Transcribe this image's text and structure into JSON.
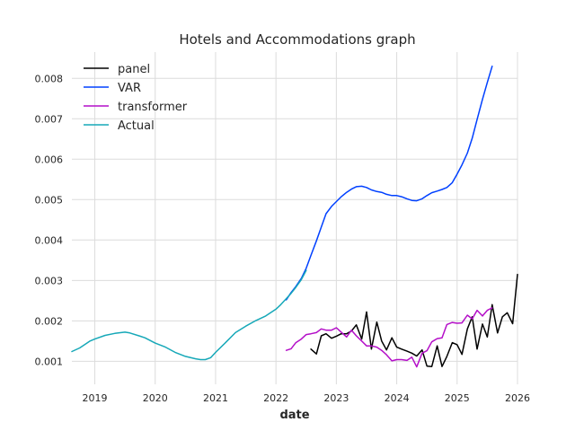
{
  "chart_data": {
    "type": "line",
    "title": "Hotels and Accommodations graph",
    "xlabel": "date",
    "ylabel": "",
    "xlim": [
      2018.62,
      2026.0
    ],
    "ylim": [
      0.00043,
      0.00865
    ],
    "grid": true,
    "legend_position": "top-left",
    "x_ticks": [
      {
        "value": 2019,
        "label": "2019"
      },
      {
        "value": 2020,
        "label": "2020"
      },
      {
        "value": 2021,
        "label": "2021"
      },
      {
        "value": 2022,
        "label": "2022"
      },
      {
        "value": 2023,
        "label": "2023"
      },
      {
        "value": 2024,
        "label": "2024"
      },
      {
        "value": 2025,
        "label": "2025"
      },
      {
        "value": 2026,
        "label": "2026"
      }
    ],
    "y_ticks": [
      {
        "value": 0.001,
        "label": "0.001"
      },
      {
        "value": 0.002,
        "label": "0.002"
      },
      {
        "value": 0.003,
        "label": "0.003"
      },
      {
        "value": 0.004,
        "label": "0.004"
      },
      {
        "value": 0.005,
        "label": "0.005"
      },
      {
        "value": 0.006,
        "label": "0.006"
      },
      {
        "value": 0.007,
        "label": "0.007"
      },
      {
        "value": 0.008,
        "label": "0.008"
      }
    ],
    "series": [
      {
        "name": "panel",
        "color": "#000000",
        "points": [
          [
            2022.58,
            0.0013
          ],
          [
            2022.67,
            0.00118
          ],
          [
            2022.75,
            0.00163
          ],
          [
            2022.83,
            0.00168
          ],
          [
            2022.92,
            0.00157
          ],
          [
            2023.0,
            0.00162
          ],
          [
            2023.08,
            0.00168
          ],
          [
            2023.17,
            0.00168
          ],
          [
            2023.25,
            0.00175
          ],
          [
            2023.33,
            0.0019
          ],
          [
            2023.42,
            0.00155
          ],
          [
            2023.5,
            0.00222
          ],
          [
            2023.58,
            0.0013
          ],
          [
            2023.67,
            0.00197
          ],
          [
            2023.75,
            0.0015
          ],
          [
            2023.83,
            0.00128
          ],
          [
            2023.92,
            0.00158
          ],
          [
            2024.0,
            0.00135
          ],
          [
            2024.08,
            0.0013
          ],
          [
            2024.17,
            0.00125
          ],
          [
            2024.25,
            0.0012
          ],
          [
            2024.33,
            0.00113
          ],
          [
            2024.42,
            0.00128
          ],
          [
            2024.5,
            0.00088
          ],
          [
            2024.58,
            0.00087
          ],
          [
            2024.67,
            0.00138
          ],
          [
            2024.75,
            0.00087
          ],
          [
            2024.83,
            0.00112
          ],
          [
            2024.92,
            0.00146
          ],
          [
            2025.0,
            0.00141
          ],
          [
            2025.08,
            0.00117
          ],
          [
            2025.17,
            0.0018
          ],
          [
            2025.25,
            0.0021
          ],
          [
            2025.33,
            0.0013
          ],
          [
            2025.42,
            0.00192
          ],
          [
            2025.5,
            0.0016
          ],
          [
            2025.58,
            0.0024
          ],
          [
            2025.67,
            0.0017
          ],
          [
            2025.75,
            0.0021
          ],
          [
            2025.83,
            0.0022
          ],
          [
            2025.92,
            0.00193
          ],
          [
            2026.0,
            0.00315
          ]
        ]
      },
      {
        "name": "VAR",
        "color": "#0040ff",
        "points": [
          [
            2022.17,
            0.00252
          ],
          [
            2022.25,
            0.0027
          ],
          [
            2022.33,
            0.00285
          ],
          [
            2022.42,
            0.00305
          ],
          [
            2022.5,
            0.0033
          ],
          [
            2022.58,
            0.00362
          ],
          [
            2022.67,
            0.00398
          ],
          [
            2022.75,
            0.00432
          ],
          [
            2022.83,
            0.00465
          ],
          [
            2022.92,
            0.00483
          ],
          [
            2023.0,
            0.00495
          ],
          [
            2023.08,
            0.00507
          ],
          [
            2023.17,
            0.00518
          ],
          [
            2023.25,
            0.00526
          ],
          [
            2023.33,
            0.00532
          ],
          [
            2023.42,
            0.00533
          ],
          [
            2023.5,
            0.0053
          ],
          [
            2023.58,
            0.00524
          ],
          [
            2023.67,
            0.0052
          ],
          [
            2023.75,
            0.00518
          ],
          [
            2023.83,
            0.00513
          ],
          [
            2023.92,
            0.0051
          ],
          [
            2024.0,
            0.0051
          ],
          [
            2024.08,
            0.00507
          ],
          [
            2024.17,
            0.00502
          ],
          [
            2024.25,
            0.00498
          ],
          [
            2024.33,
            0.00497
          ],
          [
            2024.42,
            0.00502
          ],
          [
            2024.5,
            0.0051
          ],
          [
            2024.58,
            0.00517
          ],
          [
            2024.67,
            0.00521
          ],
          [
            2024.75,
            0.00525
          ],
          [
            2024.83,
            0.0053
          ],
          [
            2024.92,
            0.00542
          ],
          [
            2025.0,
            0.00563
          ],
          [
            2025.08,
            0.00586
          ],
          [
            2025.17,
            0.00615
          ],
          [
            2025.25,
            0.00652
          ],
          [
            2025.33,
            0.00698
          ],
          [
            2025.42,
            0.00748
          ],
          [
            2025.5,
            0.0079
          ],
          [
            2025.58,
            0.0083
          ]
        ]
      },
      {
        "name": "transformer",
        "color": "#b40fc8",
        "points": [
          [
            2022.17,
            0.00127
          ],
          [
            2022.25,
            0.00131
          ],
          [
            2022.33,
            0.00146
          ],
          [
            2022.42,
            0.00155
          ],
          [
            2022.5,
            0.00166
          ],
          [
            2022.58,
            0.00168
          ],
          [
            2022.67,
            0.00171
          ],
          [
            2022.75,
            0.0018
          ],
          [
            2022.83,
            0.00177
          ],
          [
            2022.92,
            0.00177
          ],
          [
            2023.0,
            0.00183
          ],
          [
            2023.08,
            0.00172
          ],
          [
            2023.17,
            0.0016
          ],
          [
            2023.25,
            0.00177
          ],
          [
            2023.33,
            0.00163
          ],
          [
            2023.42,
            0.0015
          ],
          [
            2023.5,
            0.00138
          ],
          [
            2023.58,
            0.00138
          ],
          [
            2023.67,
            0.00135
          ],
          [
            2023.75,
            0.00127
          ],
          [
            2023.83,
            0.00116
          ],
          [
            2023.92,
            0.00101
          ],
          [
            2024.0,
            0.00104
          ],
          [
            2024.08,
            0.00104
          ],
          [
            2024.17,
            0.00102
          ],
          [
            2024.25,
            0.0011
          ],
          [
            2024.33,
            0.00086
          ],
          [
            2024.42,
            0.0012
          ],
          [
            2024.5,
            0.00126
          ],
          [
            2024.58,
            0.00148
          ],
          [
            2024.67,
            0.00156
          ],
          [
            2024.75,
            0.00158
          ],
          [
            2024.83,
            0.00191
          ],
          [
            2024.92,
            0.00196
          ],
          [
            2025.0,
            0.00194
          ],
          [
            2025.08,
            0.00195
          ],
          [
            2025.17,
            0.00214
          ],
          [
            2025.25,
            0.00205
          ],
          [
            2025.33,
            0.00226
          ],
          [
            2025.42,
            0.00212
          ],
          [
            2025.5,
            0.00226
          ],
          [
            2025.58,
            0.00232
          ]
        ]
      },
      {
        "name": "Actual",
        "color": "#16a8b8",
        "points": [
          [
            2018.62,
            0.00124
          ],
          [
            2018.75,
            0.00133
          ],
          [
            2018.92,
            0.0015
          ],
          [
            2019.0,
            0.00155
          ],
          [
            2019.17,
            0.00164
          ],
          [
            2019.33,
            0.00169
          ],
          [
            2019.5,
            0.00172
          ],
          [
            2019.58,
            0.0017
          ],
          [
            2019.75,
            0.00162
          ],
          [
            2019.83,
            0.00158
          ],
          [
            2020.0,
            0.00145
          ],
          [
            2020.17,
            0.00135
          ],
          [
            2020.33,
            0.00122
          ],
          [
            2020.5,
            0.00112
          ],
          [
            2020.67,
            0.00106
          ],
          [
            2020.75,
            0.00104
          ],
          [
            2020.83,
            0.00104
          ],
          [
            2020.92,
            0.00109
          ],
          [
            2021.0,
            0.00122
          ],
          [
            2021.17,
            0.00147
          ],
          [
            2021.33,
            0.00171
          ],
          [
            2021.5,
            0.00187
          ],
          [
            2021.67,
            0.00201
          ],
          [
            2021.83,
            0.00212
          ],
          [
            2022.0,
            0.00229
          ],
          [
            2022.08,
            0.0024
          ],
          [
            2022.17,
            0.00255
          ],
          [
            2022.25,
            0.00268
          ],
          [
            2022.33,
            0.00283
          ],
          [
            2022.42,
            0.00302
          ],
          [
            2022.5,
            0.00325
          ]
        ]
      }
    ]
  }
}
